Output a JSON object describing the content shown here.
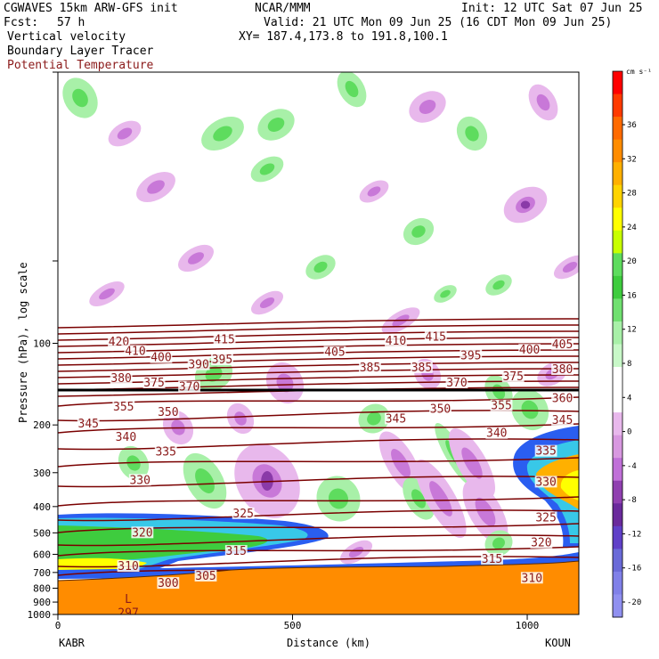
{
  "header": {
    "model": "CGWAVES 15km ARW-GFS init",
    "center": "NCAR/MMM",
    "init": "Init: 12 UTC Sat 07 Jun 25",
    "fcst_label": "Fcst:",
    "fcst_value": "57 h",
    "valid": "Valid: 21 UTC Mon 09 Jun 25 (16 CDT Mon 09 Jun 25)",
    "field1": "Vertical velocity",
    "field2": "Boundary Layer Tracer",
    "field3": "Potential Temperature",
    "xy": "XY= 187.4,173.8 to 191.8,100.1"
  },
  "colors": {
    "contour": "#7a0000",
    "theta_label": "#8b1a1a",
    "terrain": "#ff8c00",
    "positive_light": "#a8f0a8",
    "positive_mid": "#5edc5e",
    "negative_light": "#e8b8ec",
    "negative_mid": "#c878d8",
    "negative_dark": "#8a3aa8"
  },
  "chart_data": {
    "type": "heatmap",
    "title": "Vertical velocity",
    "xlabel": "Distance (km)",
    "ylabel": "Pressure (hPa), log scale",
    "xlim": [
      0,
      1110
    ],
    "ylim": [
      1000,
      10
    ],
    "yscale": "log",
    "x_ticks": [
      0,
      500,
      1000
    ],
    "y_ticks": [
      100,
      200,
      300,
      400,
      500,
      600,
      700,
      800,
      900,
      1000
    ],
    "left_station": "KABR",
    "right_station": "KOUN",
    "colorbar": {
      "unit": "cm s⁻¹",
      "labels": [
        "36",
        "32",
        "28",
        "24",
        "20",
        "16",
        "12",
        "8",
        "4",
        "0",
        "-4",
        "-8",
        "-12",
        "-16",
        "-20"
      ],
      "colors": [
        "#ff0000",
        "#ff3a00",
        "#ff6a00",
        "#ff8c00",
        "#ffb000",
        "#ffd400",
        "#ffff00",
        "#c8ff00",
        "#5edc5e",
        "#3ecc3e",
        "#70e070",
        "#a8f0a8",
        "#c8f8c8",
        "#ffffff",
        "#ffffff",
        "#e8b8ec",
        "#d898e0",
        "#c070d8",
        "#9040b0",
        "#6a2a9c",
        "#6040c8",
        "#6a6ad8",
        "#8080e8",
        "#9090f0"
      ]
    },
    "theta_labels": [
      {
        "text": "420",
        "x": 130,
        "p": 99
      },
      {
        "text": "410",
        "x": 165,
        "p": 107
      },
      {
        "text": "400",
        "x": 220,
        "p": 113
      },
      {
        "text": "390",
        "x": 300,
        "p": 120
      },
      {
        "text": "395",
        "x": 350,
        "p": 115
      },
      {
        "text": "415",
        "x": 355,
        "p": 97
      },
      {
        "text": "405",
        "x": 590,
        "p": 108
      },
      {
        "text": "410",
        "x": 720,
        "p": 98
      },
      {
        "text": "415",
        "x": 805,
        "p": 95
      },
      {
        "text": "385",
        "x": 665,
        "p": 123
      },
      {
        "text": "385",
        "x": 775,
        "p": 123
      },
      {
        "text": "395",
        "x": 880,
        "p": 111
      },
      {
        "text": "400",
        "x": 1005,
        "p": 106
      },
      {
        "text": "405",
        "x": 1075,
        "p": 101
      },
      {
        "text": "380",
        "x": 135,
        "p": 135
      },
      {
        "text": "375",
        "x": 205,
        "p": 140
      },
      {
        "text": "370",
        "x": 280,
        "p": 145
      },
      {
        "text": "380",
        "x": 1075,
        "p": 125
      },
      {
        "text": "375",
        "x": 970,
        "p": 133
      },
      {
        "text": "370",
        "x": 850,
        "p": 140
      },
      {
        "text": "360",
        "x": 1075,
        "p": 160
      },
      {
        "text": "355",
        "x": 945,
        "p": 170
      },
      {
        "text": "355",
        "x": 140,
        "p": 172
      },
      {
        "text": "350",
        "x": 235,
        "p": 180
      },
      {
        "text": "350",
        "x": 815,
        "p": 175
      },
      {
        "text": "345",
        "x": 65,
        "p": 198
      },
      {
        "text": "345",
        "x": 720,
        "p": 190
      },
      {
        "text": "345",
        "x": 1075,
        "p": 192
      },
      {
        "text": "340",
        "x": 145,
        "p": 222
      },
      {
        "text": "340",
        "x": 935,
        "p": 215
      },
      {
        "text": "335",
        "x": 230,
        "p": 252
      },
      {
        "text": "335",
        "x": 1040,
        "p": 250
      },
      {
        "text": "330",
        "x": 175,
        "p": 320
      },
      {
        "text": "330",
        "x": 1040,
        "p": 325
      },
      {
        "text": "325",
        "x": 395,
        "p": 425
      },
      {
        "text": "325",
        "x": 1040,
        "p": 440
      },
      {
        "text": "320",
        "x": 180,
        "p": 500
      },
      {
        "text": "320",
        "x": 1030,
        "p": 545
      },
      {
        "text": "315",
        "x": 380,
        "p": 585
      },
      {
        "text": "315",
        "x": 925,
        "p": 625
      },
      {
        "text": "310",
        "x": 150,
        "p": 665
      },
      {
        "text": "310",
        "x": 1010,
        "p": 735
      },
      {
        "text": "305",
        "x": 315,
        "p": 722
      },
      {
        "text": "300",
        "x": 235,
        "p": 768
      }
    ],
    "low_marker": {
      "text": "L",
      "x": 150,
      "p": 880
    },
    "low_value": {
      "text": "297",
      "x": 150,
      "p": 990
    }
  }
}
